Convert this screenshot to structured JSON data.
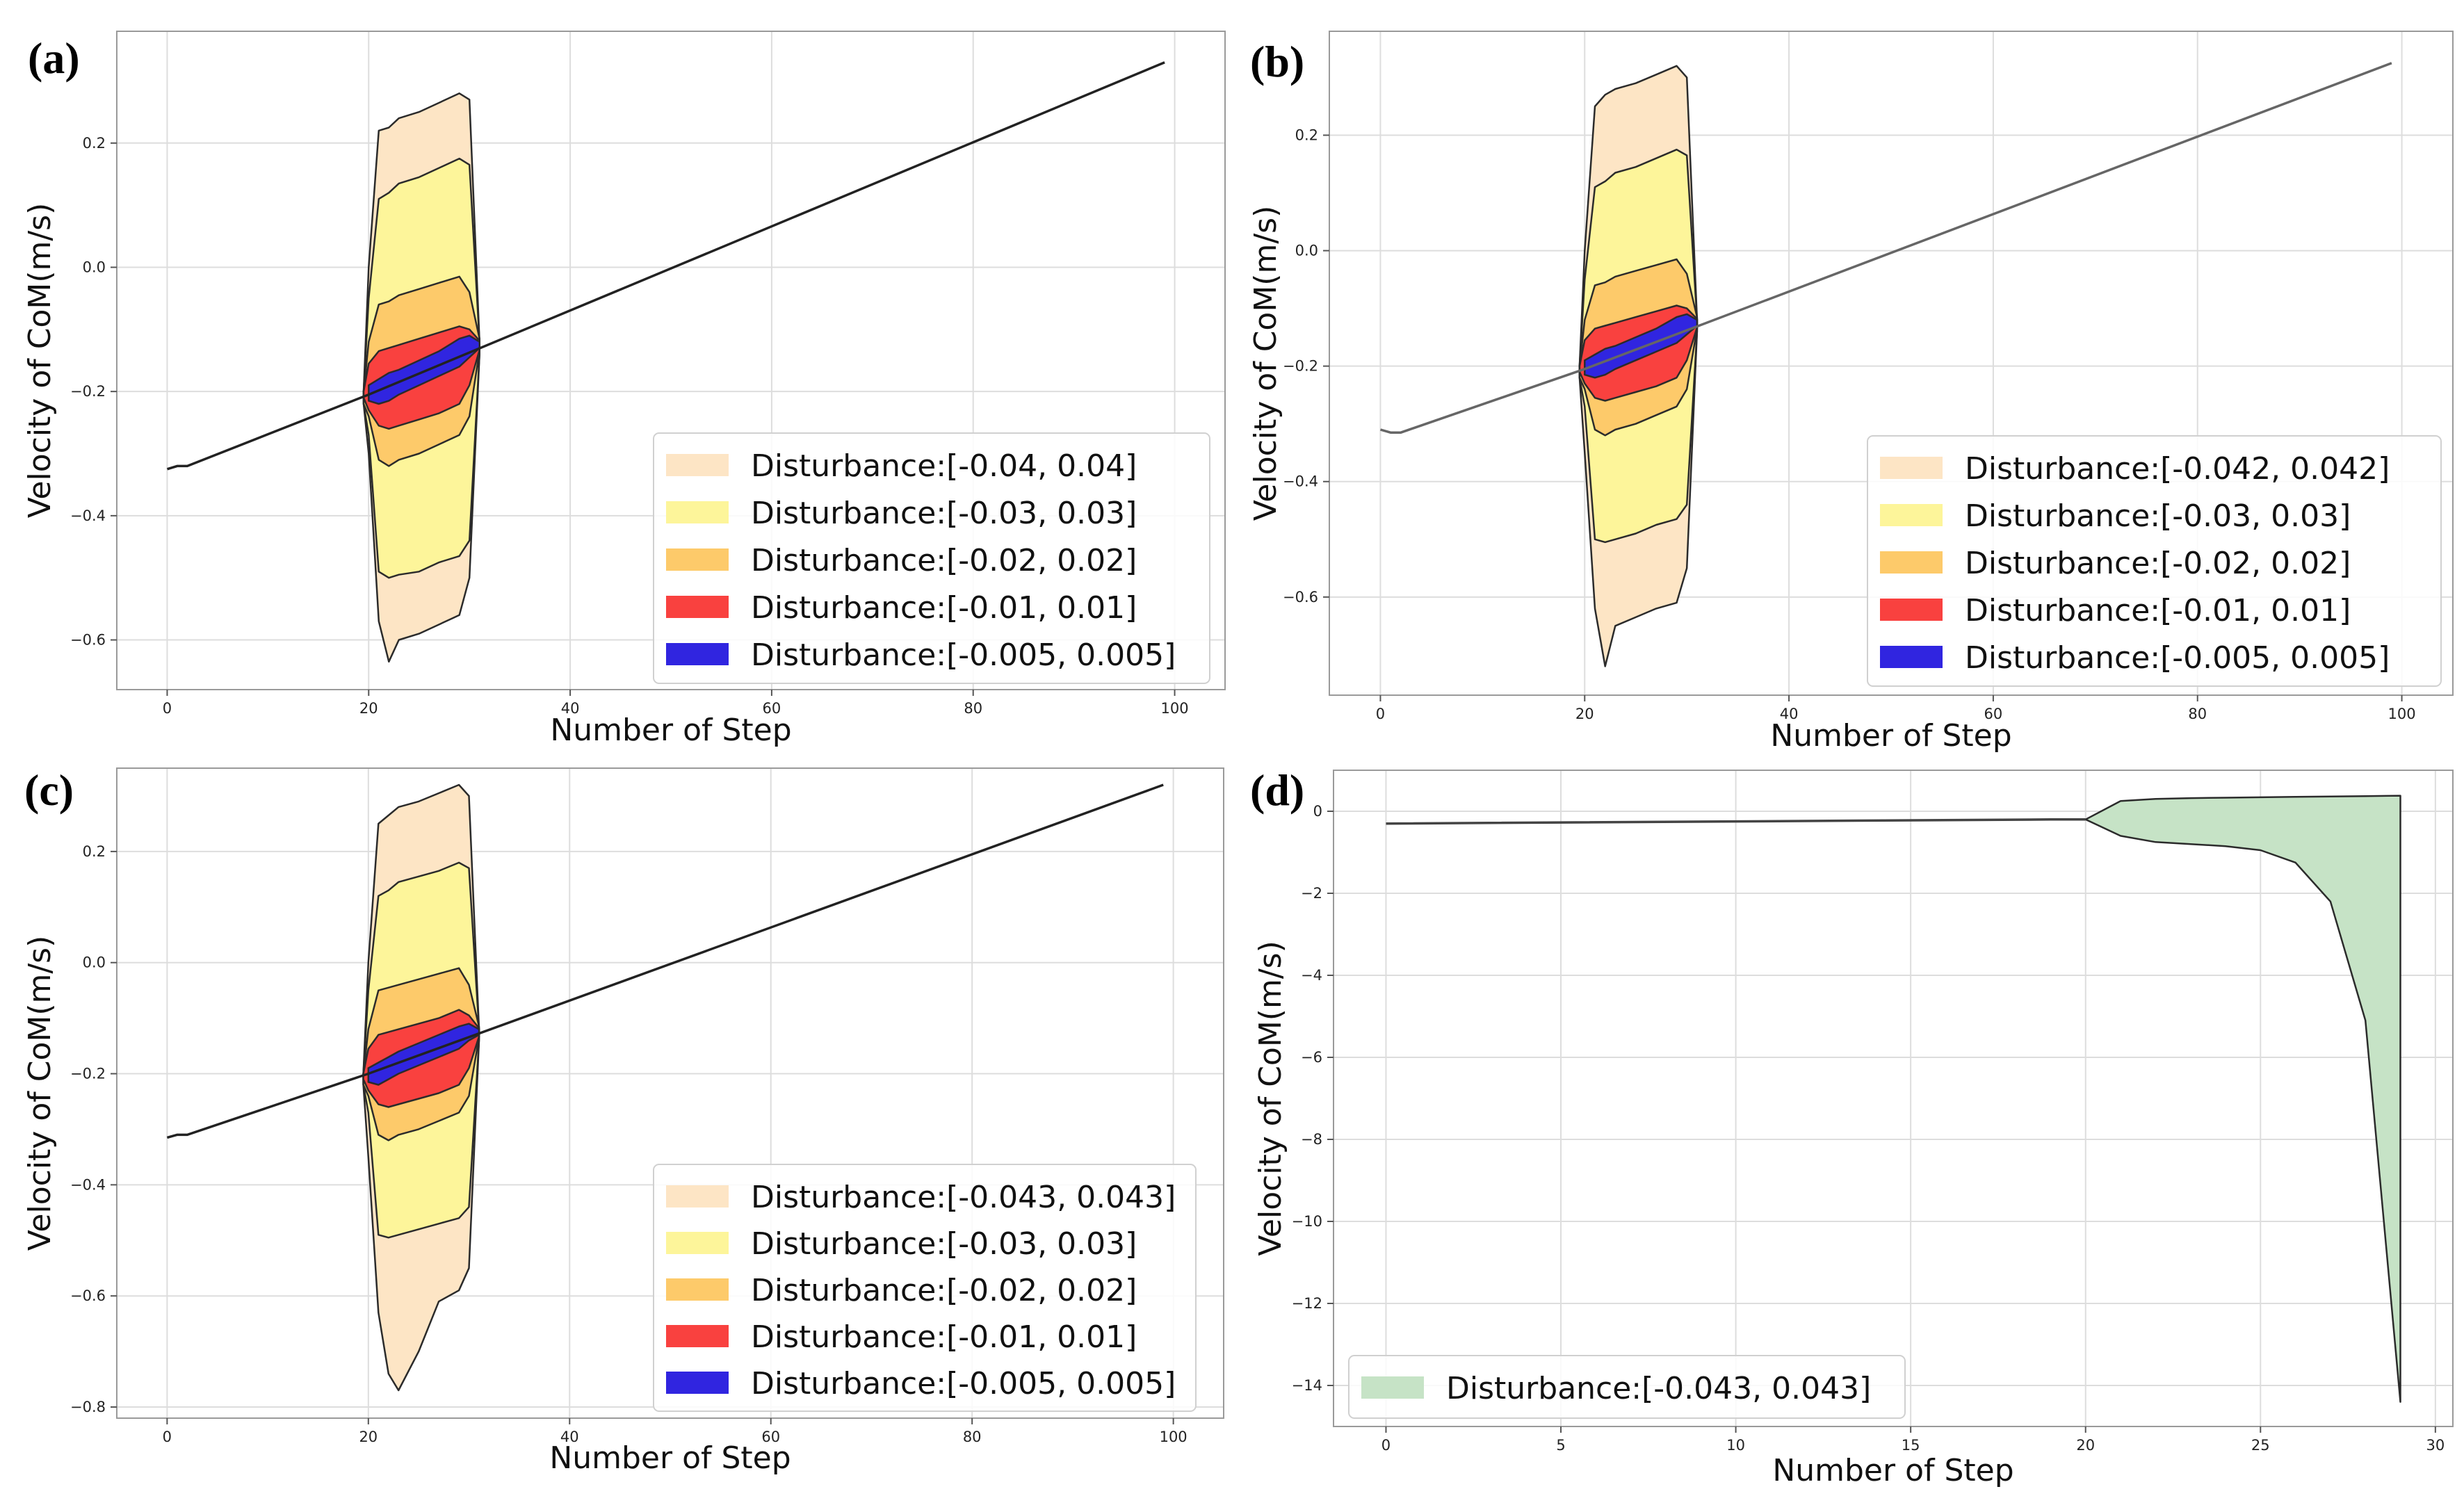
{
  "chart_data": [
    {
      "panel": "(a)",
      "type": "area",
      "xlabel": "Number of Step",
      "ylabel": "Velocity of CoM(m/s)",
      "xlim": [
        -5,
        105
      ],
      "ylim": [
        -0.68,
        0.38
      ],
      "xticks": [
        0,
        20,
        40,
        60,
        80,
        100
      ],
      "yticks": [
        -0.6,
        -0.4,
        -0.2,
        0.0,
        0.2
      ],
      "grid": true,
      "legend_position": "lower-right",
      "line": {
        "x": [
          0,
          1,
          2,
          20,
          99
        ],
        "y": [
          -0.325,
          -0.32,
          -0.32,
          -0.205,
          0.33
        ],
        "color": "#222222"
      },
      "series": [
        {
          "name": "Disturbance:[-0.04, 0.04]",
          "color": "#FDE5C5",
          "x": [
            19.5,
            20,
            21,
            22,
            23,
            25,
            27,
            29,
            30,
            31
          ],
          "upper": [
            -0.2,
            0.0,
            0.22,
            0.225,
            0.24,
            0.25,
            0.265,
            0.28,
            0.27,
            -0.12
          ],
          "lower": [
            -0.22,
            -0.3,
            -0.57,
            -0.635,
            -0.6,
            -0.59,
            -0.575,
            -0.56,
            -0.5,
            -0.14
          ]
        },
        {
          "name": "Disturbance:[-0.03, 0.03]",
          "color": "#FDF59A",
          "x": [
            19.5,
            20,
            21,
            22,
            23,
            25,
            27,
            29,
            30,
            31
          ],
          "upper": [
            -0.2,
            -0.05,
            0.11,
            0.12,
            0.135,
            0.145,
            0.16,
            0.175,
            0.165,
            -0.12
          ],
          "lower": [
            -0.22,
            -0.27,
            -0.49,
            -0.5,
            -0.495,
            -0.49,
            -0.475,
            -0.465,
            -0.44,
            -0.14
          ]
        },
        {
          "name": "Disturbance:[-0.02, 0.02]",
          "color": "#FDCA6A",
          "x": [
            19.5,
            20,
            21,
            22,
            23,
            25,
            27,
            29,
            30,
            31
          ],
          "upper": [
            -0.2,
            -0.12,
            -0.06,
            -0.055,
            -0.045,
            -0.035,
            -0.025,
            -0.015,
            -0.04,
            -0.115
          ],
          "lower": [
            -0.22,
            -0.24,
            -0.31,
            -0.32,
            -0.31,
            -0.3,
            -0.285,
            -0.27,
            -0.24,
            -0.135
          ]
        },
        {
          "name": "Disturbance:[-0.01, 0.01]",
          "color": "#F9413F",
          "x": [
            19.5,
            20,
            21,
            22,
            23,
            25,
            27,
            29,
            30,
            31
          ],
          "upper": [
            -0.2,
            -0.155,
            -0.135,
            -0.13,
            -0.125,
            -0.115,
            -0.105,
            -0.095,
            -0.1,
            -0.118
          ],
          "lower": [
            -0.21,
            -0.23,
            -0.255,
            -0.26,
            -0.255,
            -0.245,
            -0.235,
            -0.22,
            -0.19,
            -0.133
          ]
        },
        {
          "name": "Disturbance:[-0.005, 0.005]",
          "color": "#3025E0",
          "x": [
            20,
            21,
            22,
            23,
            25,
            27,
            29,
            30,
            31
          ],
          "upper": [
            -0.19,
            -0.18,
            -0.17,
            -0.165,
            -0.15,
            -0.135,
            -0.115,
            -0.11,
            -0.12
          ],
          "lower": [
            -0.215,
            -0.22,
            -0.215,
            -0.205,
            -0.19,
            -0.175,
            -0.16,
            -0.145,
            -0.13
          ]
        }
      ]
    },
    {
      "panel": "(b)",
      "type": "area",
      "xlabel": "Number of Step",
      "ylabel": "Velocity of CoM(m/s)",
      "xlim": [
        -5,
        105
      ],
      "ylim": [
        -0.77,
        0.38
      ],
      "xticks": [
        0,
        20,
        40,
        60,
        80,
        100
      ],
      "yticks": [
        -0.6,
        -0.4,
        -0.2,
        0.0,
        0.2
      ],
      "grid": true,
      "legend_position": "lower-right",
      "line": {
        "x": [
          0,
          1,
          2,
          20,
          99
        ],
        "y": [
          -0.31,
          -0.315,
          -0.315,
          -0.205,
          0.325
        ],
        "color": "#666666"
      },
      "series": [
        {
          "name": "Disturbance:[-0.042, 0.042]",
          "color": "#FDE5C5",
          "x": [
            19.5,
            20,
            21,
            22,
            23,
            25,
            27,
            29,
            30,
            31
          ],
          "upper": [
            -0.2,
            0.0,
            0.25,
            0.27,
            0.28,
            0.29,
            0.305,
            0.32,
            0.3,
            -0.12
          ],
          "lower": [
            -0.22,
            -0.35,
            -0.62,
            -0.72,
            -0.65,
            -0.635,
            -0.62,
            -0.61,
            -0.55,
            -0.14
          ]
        },
        {
          "name": "Disturbance:[-0.03, 0.03]",
          "color": "#FDF59A",
          "x": [
            19.5,
            20,
            21,
            22,
            23,
            25,
            27,
            29,
            30,
            31
          ],
          "upper": [
            -0.2,
            -0.05,
            0.11,
            0.12,
            0.135,
            0.145,
            0.16,
            0.175,
            0.165,
            -0.12
          ],
          "lower": [
            -0.22,
            -0.27,
            -0.5,
            -0.505,
            -0.5,
            -0.49,
            -0.475,
            -0.465,
            -0.44,
            -0.14
          ]
        },
        {
          "name": "Disturbance:[-0.02, 0.02]",
          "color": "#FDCA6A",
          "x": [
            19.5,
            20,
            21,
            22,
            23,
            25,
            27,
            29,
            30,
            31
          ],
          "upper": [
            -0.2,
            -0.12,
            -0.06,
            -0.055,
            -0.045,
            -0.035,
            -0.025,
            -0.015,
            -0.04,
            -0.115
          ],
          "lower": [
            -0.22,
            -0.24,
            -0.31,
            -0.32,
            -0.31,
            -0.3,
            -0.285,
            -0.27,
            -0.24,
            -0.135
          ]
        },
        {
          "name": "Disturbance:[-0.01, 0.01]",
          "color": "#F9413F",
          "x": [
            19.5,
            20,
            21,
            22,
            23,
            25,
            27,
            29,
            30,
            31
          ],
          "upper": [
            -0.2,
            -0.155,
            -0.135,
            -0.13,
            -0.125,
            -0.115,
            -0.105,
            -0.095,
            -0.1,
            -0.118
          ],
          "lower": [
            -0.21,
            -0.23,
            -0.255,
            -0.26,
            -0.255,
            -0.245,
            -0.235,
            -0.22,
            -0.19,
            -0.133
          ]
        },
        {
          "name": "Disturbance:[-0.005, 0.005]",
          "color": "#3025E0",
          "x": [
            20,
            21,
            22,
            23,
            25,
            27,
            29,
            30,
            31
          ],
          "upper": [
            -0.19,
            -0.18,
            -0.17,
            -0.165,
            -0.15,
            -0.135,
            -0.115,
            -0.11,
            -0.12
          ],
          "lower": [
            -0.215,
            -0.22,
            -0.215,
            -0.205,
            -0.19,
            -0.175,
            -0.16,
            -0.145,
            -0.13
          ]
        }
      ]
    },
    {
      "panel": "(c)",
      "type": "area",
      "xlabel": "Number of Step",
      "ylabel": "Velocity of CoM(m/s)",
      "xlim": [
        -5,
        105
      ],
      "ylim": [
        -0.82,
        0.35
      ],
      "xticks": [
        0,
        20,
        40,
        60,
        80,
        100
      ],
      "yticks": [
        -0.8,
        -0.6,
        -0.4,
        -0.2,
        0.0,
        0.2
      ],
      "grid": true,
      "legend_position": "lower-right",
      "line": {
        "x": [
          0,
          1,
          2,
          20,
          99
        ],
        "y": [
          -0.315,
          -0.31,
          -0.31,
          -0.2,
          0.32
        ],
        "color": "#222222"
      },
      "series": [
        {
          "name": "Disturbance:[-0.043, 0.043]",
          "color": "#FDE5C5",
          "x": [
            19.5,
            20,
            21,
            22,
            23,
            25,
            27,
            29,
            30,
            31
          ],
          "upper": [
            -0.2,
            0.0,
            0.25,
            0.265,
            0.28,
            0.29,
            0.305,
            0.32,
            0.3,
            -0.12
          ],
          "lower": [
            -0.22,
            -0.35,
            -0.63,
            -0.74,
            -0.77,
            -0.7,
            -0.61,
            -0.59,
            -0.55,
            -0.14
          ]
        },
        {
          "name": "Disturbance:[-0.03, 0.03]",
          "color": "#FDF59A",
          "x": [
            19.5,
            20,
            21,
            22,
            23,
            25,
            27,
            29,
            30,
            31
          ],
          "upper": [
            -0.2,
            -0.05,
            0.12,
            0.13,
            0.145,
            0.155,
            0.165,
            0.18,
            0.17,
            -0.12
          ],
          "lower": [
            -0.22,
            -0.27,
            -0.49,
            -0.495,
            -0.49,
            -0.48,
            -0.47,
            -0.46,
            -0.44,
            -0.14
          ]
        },
        {
          "name": "Disturbance:[-0.02, 0.02]",
          "color": "#FDCA6A",
          "x": [
            19.5,
            20,
            21,
            22,
            23,
            25,
            27,
            29,
            30,
            31
          ],
          "upper": [
            -0.2,
            -0.12,
            -0.05,
            -0.045,
            -0.04,
            -0.03,
            -0.02,
            -0.01,
            -0.04,
            -0.115
          ],
          "lower": [
            -0.22,
            -0.24,
            -0.31,
            -0.32,
            -0.31,
            -0.3,
            -0.285,
            -0.27,
            -0.24,
            -0.135
          ]
        },
        {
          "name": "Disturbance:[-0.01, 0.01]",
          "color": "#F9413F",
          "x": [
            19.5,
            20,
            21,
            22,
            23,
            25,
            27,
            29,
            30,
            31
          ],
          "upper": [
            -0.2,
            -0.155,
            -0.13,
            -0.125,
            -0.12,
            -0.11,
            -0.1,
            -0.085,
            -0.095,
            -0.118
          ],
          "lower": [
            -0.21,
            -0.23,
            -0.255,
            -0.26,
            -0.255,
            -0.245,
            -0.235,
            -0.22,
            -0.19,
            -0.133
          ]
        },
        {
          "name": "Disturbance:[-0.005, 0.005]",
          "color": "#3025E0",
          "x": [
            20,
            21,
            22,
            23,
            25,
            27,
            29,
            30,
            31
          ],
          "upper": [
            -0.19,
            -0.18,
            -0.17,
            -0.16,
            -0.145,
            -0.13,
            -0.115,
            -0.11,
            -0.12
          ],
          "lower": [
            -0.215,
            -0.22,
            -0.21,
            -0.2,
            -0.185,
            -0.17,
            -0.155,
            -0.14,
            -0.13
          ]
        }
      ]
    },
    {
      "panel": "(d)",
      "type": "area",
      "xlabel": "Number of Step",
      "ylabel": "Velocity of CoM(m/s)",
      "xlim": [
        -1.5,
        30.5
      ],
      "ylim": [
        -15.0,
        1.0
      ],
      "xticks": [
        0,
        5,
        10,
        15,
        20,
        25,
        30
      ],
      "yticks": [
        -14,
        -12,
        -10,
        -8,
        -6,
        -4,
        -2,
        0
      ],
      "grid": true,
      "legend_position": "lower-left",
      "line": {
        "x": [
          0,
          19,
          20
        ],
        "y": [
          -0.3,
          -0.2,
          -0.2
        ],
        "color": "#444444"
      },
      "series": [
        {
          "name": "Disturbance:[-0.043, 0.043]",
          "color": "#C6E3C6",
          "x": [
            20,
            21,
            22,
            23,
            24,
            25,
            26,
            27,
            28,
            29
          ],
          "upper": [
            -0.2,
            0.25,
            0.3,
            0.32,
            0.33,
            0.34,
            0.35,
            0.36,
            0.37,
            0.38
          ],
          "lower": [
            -0.2,
            -0.6,
            -0.75,
            -0.8,
            -0.85,
            -0.95,
            -1.25,
            -2.2,
            -5.1,
            -14.4
          ]
        }
      ]
    }
  ]
}
